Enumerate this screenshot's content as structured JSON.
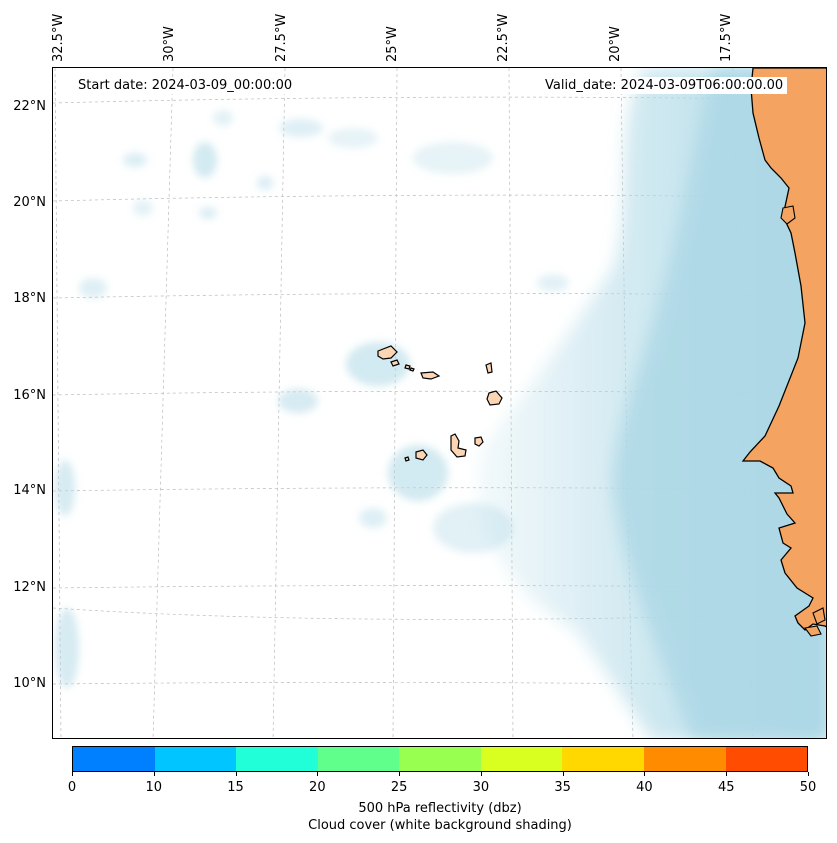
{
  "map": {
    "start_date": "Start date: 2024-03-09_00:00:00",
    "valid_date": "Valid_date: 2024-03-09T06:00:00.00",
    "lon_labels": [
      "32.5°W",
      "30°W",
      "27.5°W",
      "25°W",
      "22.5°W",
      "20°W",
      "17.5°W"
    ],
    "lat_labels": [
      "22°N",
      "20°N",
      "18°N",
      "16°N",
      "14°N",
      "12°N",
      "10°N"
    ],
    "land_color": "#f4a460",
    "island_color": "#fcd5b5",
    "cloud_color": "#add8e6",
    "gridlines": true
  },
  "colorbar": {
    "ticks": [
      "0",
      "10",
      "15",
      "20",
      "25",
      "30",
      "35",
      "40",
      "45",
      "50"
    ],
    "colors": [
      "#0080ff",
      "#00c5ff",
      "#20ffd8",
      "#60ff8c",
      "#98ff50",
      "#d8ff20",
      "#ffd800",
      "#ff8c00",
      "#ff4c00"
    ],
    "label_line1": "500 hPa reflectivity (dbz)",
    "label_line2": "Cloud cover (white background shading)"
  }
}
